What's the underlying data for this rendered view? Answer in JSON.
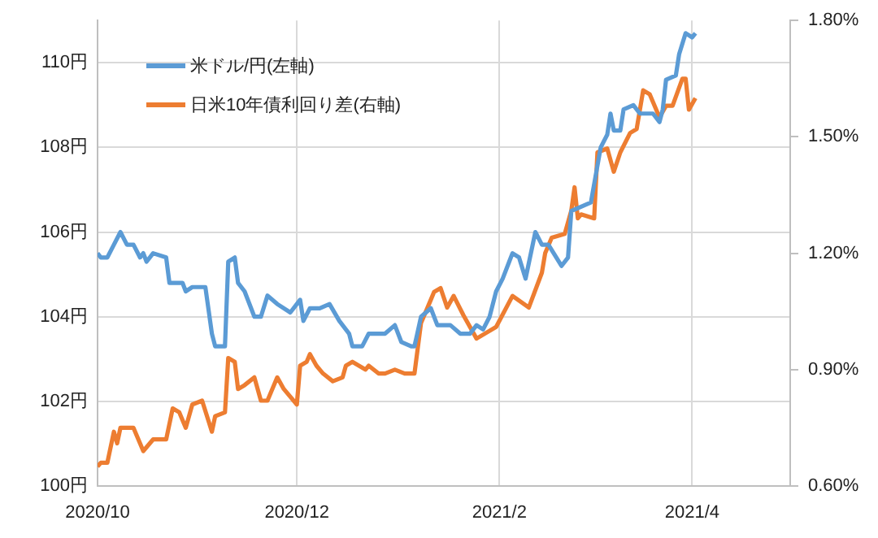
{
  "chart_data": {
    "type": "line",
    "legend": "top left",
    "grid": true,
    "marker": "none",
    "line_style": "solid",
    "xlim": [
      "2020-10-01",
      "2021-05-01"
    ],
    "xticks": [
      {
        "value": "2020-10",
        "label": "2020/10"
      },
      {
        "value": "2020-12",
        "label": "2020/12"
      },
      {
        "value": "2021-02",
        "label": "2021/2"
      },
      {
        "value": "2021-04",
        "label": "2021/4"
      }
    ],
    "ylim": [
      100,
      111
    ],
    "yticks": [
      {
        "value": 100,
        "label": "100円"
      },
      {
        "value": 102,
        "label": "102円"
      },
      {
        "value": 104,
        "label": "104円"
      },
      {
        "value": 106,
        "label": "106円"
      },
      {
        "value": 108,
        "label": "108円"
      },
      {
        "value": 110,
        "label": "110円"
      }
    ],
    "y2lim": [
      0.6,
      1.8
    ],
    "y2ticks": [
      {
        "value": 0.6,
        "label": "0.60%"
      },
      {
        "value": 0.9,
        "label": "0.90%"
      },
      {
        "value": 1.2,
        "label": "1.20%"
      },
      {
        "value": 1.5,
        "label": "1.50%"
      },
      {
        "value": 1.8,
        "label": "1.80%"
      }
    ],
    "series": [
      {
        "name": "米ドル/円(左軸)",
        "color": "#5b9bd5",
        "x": [
          "2020-10-01",
          "2020-10-02",
          "2020-10-04",
          "2020-10-06",
          "2020-10-08",
          "2020-10-10",
          "2020-10-12",
          "2020-10-14",
          "2020-10-15",
          "2020-10-16",
          "2020-10-18",
          "2020-10-22",
          "2020-10-23",
          "2020-10-27",
          "2020-10-28",
          "2020-10-30",
          "2020-11-03",
          "2020-11-05",
          "2020-11-06",
          "2020-11-09",
          "2020-11-10",
          "2020-11-12",
          "2020-11-13",
          "2020-11-15",
          "2020-11-18",
          "2020-11-20",
          "2020-11-22",
          "2020-11-25",
          "2020-11-29",
          "2020-12-02",
          "2020-12-03",
          "2020-12-05",
          "2020-12-08",
          "2020-12-11",
          "2020-12-14",
          "2020-12-17",
          "2020-12-18",
          "2020-12-21",
          "2020-12-23",
          "2020-12-28",
          "2020-12-31",
          "2021-01-02",
          "2021-01-05",
          "2021-01-06",
          "2021-01-08",
          "2021-01-11",
          "2021-01-13",
          "2021-01-17",
          "2021-01-20",
          "2021-01-23",
          "2021-01-25",
          "2021-01-27",
          "2021-01-29",
          "2021-01-31",
          "2021-02-02",
          "2021-02-04",
          "2021-02-05",
          "2021-02-07",
          "2021-02-09",
          "2021-02-12",
          "2021-02-14",
          "2021-02-16",
          "2021-02-20",
          "2021-02-22",
          "2021-02-23",
          "2021-02-26",
          "2021-03-01",
          "2021-03-04",
          "2021-03-06",
          "2021-03-07",
          "2021-03-08",
          "2021-03-10",
          "2021-03-11",
          "2021-03-14",
          "2021-03-16",
          "2021-03-20",
          "2021-03-22",
          "2021-03-23",
          "2021-03-24",
          "2021-03-27",
          "2021-03-28",
          "2021-03-30",
          "2021-04-01",
          "2021-04-02"
        ],
        "values": [
          105.5,
          105.4,
          105.4,
          105.7,
          106.0,
          105.7,
          105.7,
          105.4,
          105.5,
          105.3,
          105.5,
          105.4,
          104.8,
          104.8,
          104.6,
          104.7,
          104.7,
          103.6,
          103.3,
          103.3,
          105.3,
          105.4,
          104.8,
          104.6,
          104.0,
          104.0,
          104.5,
          104.3,
          104.1,
          104.4,
          103.9,
          104.2,
          104.2,
          104.3,
          103.9,
          103.6,
          103.3,
          103.3,
          103.6,
          103.6,
          103.8,
          103.4,
          103.3,
          103.3,
          104.0,
          104.2,
          103.8,
          103.8,
          103.6,
          103.6,
          103.8,
          103.7,
          104.0,
          104.6,
          104.9,
          105.3,
          105.5,
          105.4,
          104.9,
          106.0,
          105.7,
          105.7,
          105.2,
          105.4,
          106.5,
          106.6,
          106.7,
          108.0,
          108.3,
          108.8,
          108.4,
          108.4,
          108.9,
          109.0,
          108.8,
          108.8,
          108.6,
          108.9,
          109.6,
          109.7,
          110.2,
          110.7,
          110.6,
          110.7
        ]
      },
      {
        "name": "日米10年債利回り差(右軸)",
        "color": "#ed7d31",
        "axis": "y2",
        "x": [
          "2020-10-01",
          "2020-10-02",
          "2020-10-04",
          "2020-10-06",
          "2020-10-07",
          "2020-10-08",
          "2020-10-12",
          "2020-10-15",
          "2020-10-18",
          "2020-10-22",
          "2020-10-24",
          "2020-10-26",
          "2020-10-28",
          "2020-10-30",
          "2020-11-02",
          "2020-11-05",
          "2020-11-06",
          "2020-11-09",
          "2020-11-10",
          "2020-11-12",
          "2020-11-13",
          "2020-11-15",
          "2020-11-18",
          "2020-11-20",
          "2020-11-22",
          "2020-11-25",
          "2020-11-27",
          "2020-12-01",
          "2020-12-02",
          "2020-12-04",
          "2020-12-05",
          "2020-12-07",
          "2020-12-09",
          "2020-12-12",
          "2020-12-15",
          "2020-12-16",
          "2020-12-18",
          "2020-12-22",
          "2020-12-23",
          "2020-12-26",
          "2020-12-28",
          "2020-12-31",
          "2021-01-03",
          "2021-01-06",
          "2021-01-08",
          "2021-01-11",
          "2021-01-12",
          "2021-01-14",
          "2021-01-16",
          "2021-01-18",
          "2021-01-21",
          "2021-01-25",
          "2021-01-31",
          "2021-02-05",
          "2021-02-10",
          "2021-02-14",
          "2021-02-15",
          "2021-02-17",
          "2021-02-21",
          "2021-02-23",
          "2021-02-24",
          "2021-02-25",
          "2021-02-26",
          "2021-03-02",
          "2021-03-03",
          "2021-03-06",
          "2021-03-08",
          "2021-03-10",
          "2021-03-13",
          "2021-03-15",
          "2021-03-17",
          "2021-03-19",
          "2021-03-22",
          "2021-03-24",
          "2021-03-26",
          "2021-03-29",
          "2021-03-30",
          "2021-03-31",
          "2021-04-02"
        ],
        "values": [
          0.65,
          0.66,
          0.66,
          0.74,
          0.71,
          0.75,
          0.75,
          0.69,
          0.72,
          0.72,
          0.8,
          0.79,
          0.75,
          0.81,
          0.82,
          0.74,
          0.78,
          0.79,
          0.93,
          0.92,
          0.85,
          0.86,
          0.88,
          0.82,
          0.82,
          0.88,
          0.85,
          0.81,
          0.91,
          0.92,
          0.94,
          0.91,
          0.89,
          0.87,
          0.88,
          0.91,
          0.92,
          0.9,
          0.91,
          0.89,
          0.89,
          0.9,
          0.89,
          0.89,
          1.02,
          1.08,
          1.1,
          1.11,
          1.06,
          1.09,
          1.04,
          0.98,
          1.01,
          1.09,
          1.06,
          1.15,
          1.2,
          1.24,
          1.25,
          1.31,
          1.37,
          1.29,
          1.3,
          1.29,
          1.46,
          1.47,
          1.41,
          1.46,
          1.51,
          1.52,
          1.62,
          1.61,
          1.55,
          1.58,
          1.58,
          1.65,
          1.65,
          1.57,
          1.6
        ]
      }
    ]
  }
}
